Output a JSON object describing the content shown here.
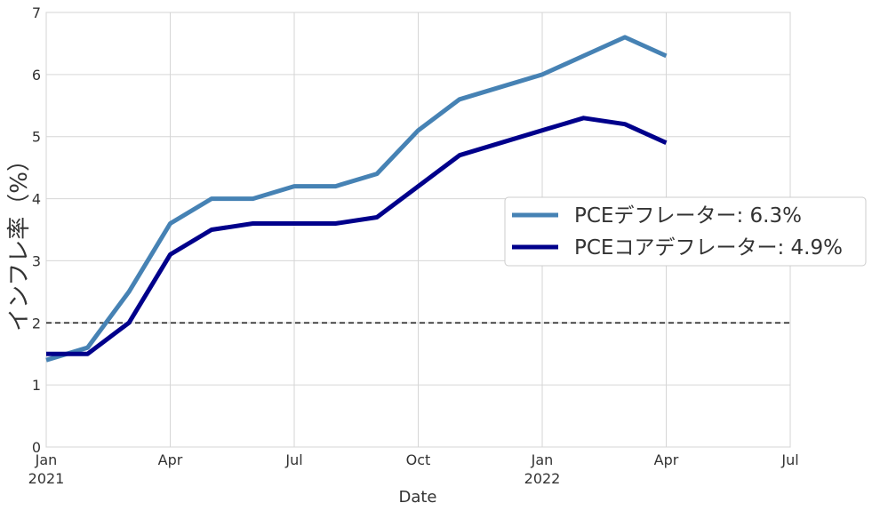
{
  "chart_data": {
    "type": "line",
    "xlabel": "Date",
    "ylabel": "インフレ率（%）",
    "ylim": [
      0,
      7
    ],
    "y_ticks": [
      0,
      1,
      2,
      3,
      4,
      5,
      6,
      7
    ],
    "xlim": [
      "2021-01",
      "2022-07"
    ],
    "x_ticks": [
      {
        "date": "2021-01",
        "label": "Jan",
        "sublabel": "2021"
      },
      {
        "date": "2021-04",
        "label": "Apr",
        "sublabel": ""
      },
      {
        "date": "2021-07",
        "label": "Jul",
        "sublabel": ""
      },
      {
        "date": "2021-10",
        "label": "Oct",
        "sublabel": ""
      },
      {
        "date": "2022-01",
        "label": "Jan",
        "sublabel": "2022"
      },
      {
        "date": "2022-04",
        "label": "Apr",
        "sublabel": ""
      },
      {
        "date": "2022-07",
        "label": "Jul",
        "sublabel": ""
      }
    ],
    "grid": true,
    "legend_position": "right",
    "x": [
      "2021-01",
      "2021-02",
      "2021-03",
      "2021-04",
      "2021-05",
      "2021-06",
      "2021-07",
      "2021-08",
      "2021-09",
      "2021-10",
      "2021-11",
      "2021-12",
      "2022-01",
      "2022-02",
      "2022-03",
      "2022-04"
    ],
    "series": [
      {
        "name": "PCEデフレーター: 6.3%",
        "color": "#4682b4",
        "values": [
          1.4,
          1.6,
          2.5,
          3.6,
          4.0,
          4.0,
          4.2,
          4.2,
          4.4,
          5.1,
          5.6,
          5.8,
          6.0,
          6.3,
          6.6,
          6.3
        ]
      },
      {
        "name": "PCEコアデフレーター: 4.9%",
        "color": "#00008b",
        "values": [
          1.5,
          1.5,
          2.0,
          3.1,
          3.5,
          3.6,
          3.6,
          3.6,
          3.7,
          4.2,
          4.7,
          4.9,
          5.1,
          5.3,
          5.2,
          4.9
        ]
      }
    ],
    "reference_line": {
      "y": 2.0,
      "style": "dashed",
      "color": "#222222"
    }
  }
}
